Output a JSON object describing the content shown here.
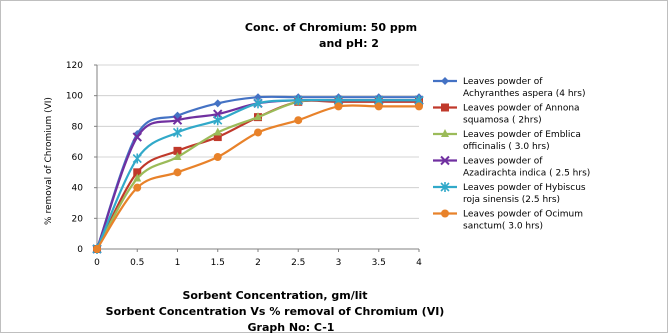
{
  "chart_data": {
    "type": "line",
    "title": [
      "Conc. of Chromium: 50 ppm",
      "and pH: 2"
    ],
    "xlabel": "Sorbent Concentration, gm/lit",
    "ylabel": "% removal of Chromium (VI)",
    "subtitle": "Sorbent Concentration Vs % removal of Chromium (VI)",
    "graph_no": "Graph No: C-1",
    "x": [
      0,
      0.5,
      1,
      1.5,
      2,
      2.5,
      3,
      3.5,
      4
    ],
    "x_tick_labels": [
      "0",
      "0.5",
      "1",
      "1.5",
      "2",
      "2.5",
      "3",
      "3.5",
      "4"
    ],
    "y_ticks": [
      0,
      20,
      40,
      60,
      80,
      100,
      120
    ],
    "xlim": [
      0,
      4
    ],
    "ylim": [
      0,
      120
    ],
    "grid": "horizontal",
    "legend_position": "right",
    "series": [
      {
        "legend": [
          "Leaves powder of",
          "Achyranthes aspera (4 hrs)"
        ],
        "color": "#4472c4",
        "marker": "diamond",
        "values": [
          0,
          75,
          87,
          95,
          99,
          99,
          99,
          99,
          99
        ]
      },
      {
        "legend": [
          "Leaves powder of Annona",
          "squamosa ( 2hrs)"
        ],
        "color": "#c0392b",
        "marker": "square",
        "values": [
          0,
          50,
          64,
          73,
          86,
          96,
          96,
          96,
          96
        ]
      },
      {
        "legend": [
          "Leaves powder of Emblica",
          "officinalis ( 3.0 hrs)"
        ],
        "color": "#9bbb59",
        "marker": "triangle",
        "values": [
          0,
          46,
          60,
          76,
          86,
          96,
          97,
          97,
          97
        ]
      },
      {
        "legend": [
          "Leaves powder of",
          "Azadirachta indica ( 2.5 hrs)"
        ],
        "color": "#7030a0",
        "marker": "x",
        "values": [
          0,
          73,
          84,
          88,
          95,
          97,
          97,
          97,
          97
        ]
      },
      {
        "legend": [
          "Leaves powder of Hybiscus",
          "roja sinensis (2.5 hrs)"
        ],
        "color": "#31a9c9",
        "marker": "star",
        "values": [
          0,
          59,
          76,
          84,
          95,
          97,
          97,
          97,
          97
        ]
      },
      {
        "legend": [
          "Leaves powder of Ocimum",
          "sanctum( 3.0 hrs)"
        ],
        "color": "#e8822a",
        "marker": "circle",
        "values": [
          0,
          40,
          50,
          60,
          76,
          84,
          93,
          93,
          93
        ]
      }
    ]
  }
}
